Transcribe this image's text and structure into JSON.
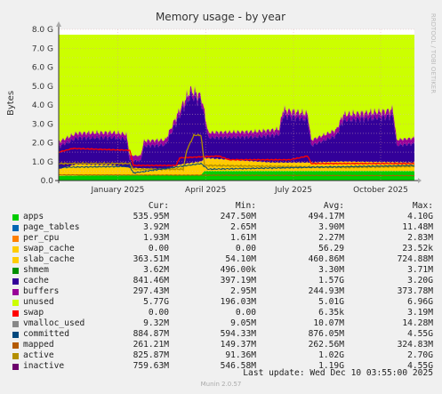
{
  "chart_data": {
    "type": "area",
    "title": "Memory usage - by year",
    "ylabel": "Bytes",
    "watermark": "RRDTOOL / TOBI OETIKER",
    "ylim": [
      0,
      8.0
    ],
    "y_ticks": [
      "0.0",
      "1.0 G",
      "2.0 G",
      "3.0 G",
      "4.0 G",
      "5.0 G",
      "6.0 G",
      "7.0 G",
      "8.0 G"
    ],
    "x_ticks": [
      "January 2025",
      "April 2025",
      "July 2025",
      "October 2025"
    ],
    "x_tick_pos": [
      0.166,
      0.413,
      0.66,
      0.905
    ],
    "colors": {
      "apps": "#00cc00",
      "page_tables": "#0066b3",
      "per_cpu": "#ff8000",
      "swap_cache": "#ffcc00",
      "slab_cache": "#ffcc00",
      "shmem": "#008f00",
      "cache": "#330099",
      "buffers": "#990099",
      "unused": "#ccff00",
      "swap": "#ff0000",
      "vmalloc_used": "#888888",
      "committed": "#00487d",
      "mapped": "#b35a00",
      "active": "#b38f00",
      "inactive": "#6b006b"
    },
    "series_summary": [
      {
        "name": "apps",
        "values": [
          0.54,
          0.25,
          0.49,
          4.1
        ]
      },
      {
        "name": "slab_cache",
        "values": [
          0.36,
          0.05,
          0.46,
          0.72
        ]
      },
      {
        "name": "cache",
        "values": [
          0.84,
          0.4,
          1.57,
          3.2
        ]
      },
      {
        "name": "buffers",
        "values": [
          0.3,
          0.003,
          0.24,
          0.37
        ]
      },
      {
        "name": "unused",
        "values": [
          5.77,
          0.2,
          5.01,
          6.96
        ]
      },
      {
        "name": "committed",
        "values": [
          0.88,
          0.59,
          0.88,
          4.55
        ]
      },
      {
        "name": "inactive",
        "values": [
          0.76,
          0.55,
          1.19,
          4.55
        ]
      }
    ]
  },
  "legend": {
    "headers": [
      "Cur:",
      "Min:",
      "Avg:",
      "Max:"
    ],
    "rows": [
      {
        "name": "apps",
        "cur": "535.95M",
        "min": "247.50M",
        "avg": "494.17M",
        "max": "4.10G",
        "color": "#00cc00"
      },
      {
        "name": "page_tables",
        "cur": "3.92M",
        "min": "2.65M",
        "avg": "3.90M",
        "max": "11.48M",
        "color": "#0066b3"
      },
      {
        "name": "per_cpu",
        "cur": "1.93M",
        "min": "1.61M",
        "avg": "2.27M",
        "max": "2.83M",
        "color": "#ff8000"
      },
      {
        "name": "swap_cache",
        "cur": "0.00",
        "min": "0.00",
        "avg": "56.29",
        "max": "23.52k",
        "color": "#ffcc00"
      },
      {
        "name": "slab_cache",
        "cur": "363.51M",
        "min": "54.10M",
        "avg": "460.86M",
        "max": "724.88M",
        "color": "#ffcc00"
      },
      {
        "name": "shmem",
        "cur": "3.62M",
        "min": "496.00k",
        "avg": "3.30M",
        "max": "3.71M",
        "color": "#008f00"
      },
      {
        "name": "cache",
        "cur": "841.46M",
        "min": "397.19M",
        "avg": "1.57G",
        "max": "3.20G",
        "color": "#330099"
      },
      {
        "name": "buffers",
        "cur": "297.43M",
        "min": "2.95M",
        "avg": "244.93M",
        "max": "373.78M",
        "color": "#990099"
      },
      {
        "name": "unused",
        "cur": "5.77G",
        "min": "196.03M",
        "avg": "5.01G",
        "max": "6.96G",
        "color": "#ccff00"
      },
      {
        "name": "swap",
        "cur": "0.00",
        "min": "0.00",
        "avg": "6.35k",
        "max": "3.19M",
        "color": "#ff0000"
      },
      {
        "name": "vmalloc_used",
        "cur": "9.32M",
        "min": "9.05M",
        "avg": "10.07M",
        "max": "14.28M",
        "color": "#888888"
      },
      {
        "name": "committed",
        "cur": "884.87M",
        "min": "594.33M",
        "avg": "876.05M",
        "max": "4.55G",
        "color": "#00487d"
      },
      {
        "name": "mapped",
        "cur": "261.21M",
        "min": "149.37M",
        "avg": "262.56M",
        "max": "324.83M",
        "color": "#b35a00"
      },
      {
        "name": "active",
        "cur": "825.87M",
        "min": "91.36M",
        "avg": "1.02G",
        "max": "2.70G",
        "color": "#b38f00"
      },
      {
        "name": "inactive",
        "cur": "759.63M",
        "min": "546.58M",
        "avg": "1.19G",
        "max": "4.55G",
        "color": "#6b006b"
      }
    ]
  },
  "footer": {
    "last_update": "Last update:  Wed Dec 10 03:55:00 2025",
    "munin": "Munin 2.0.57"
  }
}
